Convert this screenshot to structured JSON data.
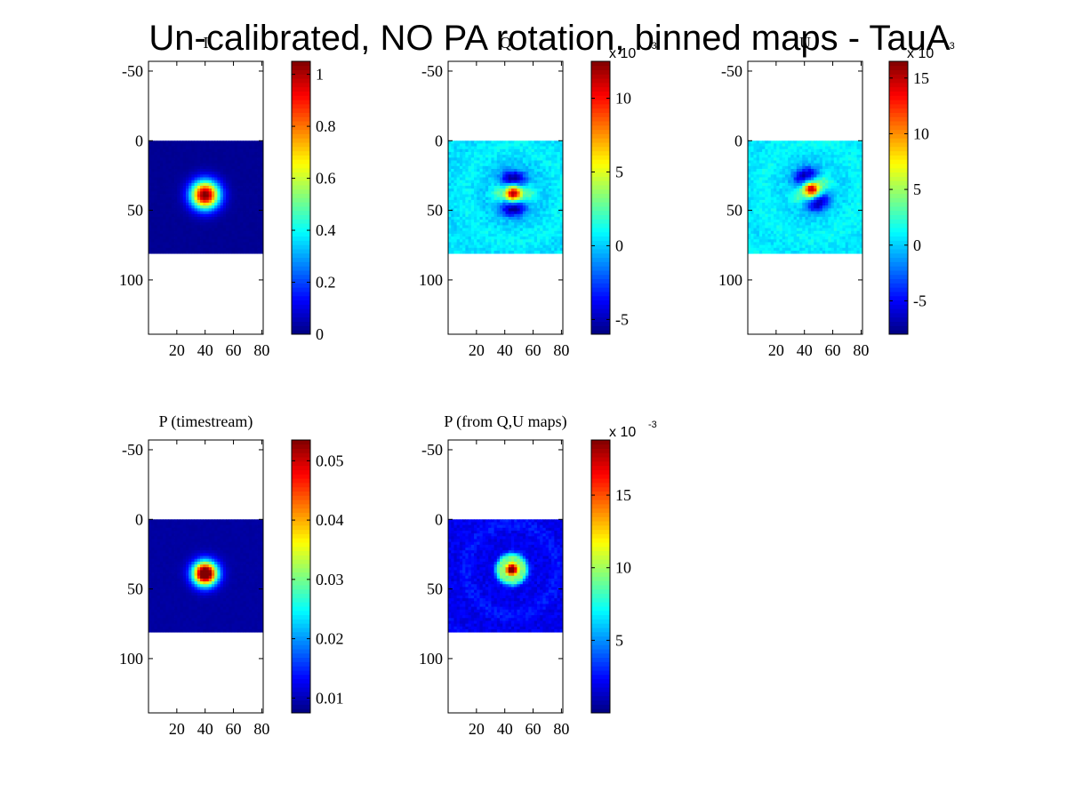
{
  "figure": {
    "title": "Un-calibrated, NO PA rotation, binned maps - TauA"
  },
  "chart_data": [
    {
      "type": "heatmap",
      "title": "I",
      "x_ticks": [
        20,
        40,
        60,
        80
      ],
      "y_ticks": [
        -50,
        0,
        50,
        100
      ],
      "xlim": [
        0,
        81
      ],
      "ylim": [
        -57,
        139
      ],
      "data_extent": {
        "x": [
          0,
          81
        ],
        "y": [
          0,
          81
        ]
      },
      "source": {
        "x": 40,
        "y": 39,
        "peak": 1.05,
        "sigma": 7
      },
      "background": 0.02,
      "pattern": "gaussian",
      "colorbar": {
        "min": 0,
        "max": 1.05,
        "ticks": [
          0,
          0.2,
          0.4,
          0.6,
          0.8,
          1
        ],
        "tick_labels": [
          "0",
          "0.2",
          "0.4",
          "0.6",
          "0.8",
          "1"
        ],
        "exponent": ""
      }
    },
    {
      "type": "heatmap",
      "title": "Q",
      "x_ticks": [
        20,
        40,
        60,
        80
      ],
      "y_ticks": [
        -50,
        0,
        50,
        100
      ],
      "xlim": [
        0,
        81
      ],
      "ylim": [
        -57,
        139
      ],
      "data_extent": {
        "x": [
          0,
          81
        ],
        "y": [
          0,
          81
        ]
      },
      "source": {
        "x": 46,
        "y": 38,
        "peak": 0.0115,
        "sigma": 3.5
      },
      "background": 0.0005,
      "pattern": "quadrupole",
      "colorbar": {
        "min": -0.006,
        "max": 0.0125,
        "ticks": [
          -0.005,
          0,
          0.005,
          0.01
        ],
        "tick_labels": [
          "-5",
          "0",
          "5",
          "10"
        ],
        "exponent": "x 10",
        "exponent_power": "-3"
      }
    },
    {
      "type": "heatmap",
      "title": "U",
      "x_ticks": [
        20,
        40,
        60,
        80
      ],
      "y_ticks": [
        -50,
        0,
        50,
        100
      ],
      "xlim": [
        0,
        81
      ],
      "ylim": [
        -57,
        139
      ],
      "data_extent": {
        "x": [
          0,
          81
        ],
        "y": [
          0,
          81
        ]
      },
      "source": {
        "x": 45,
        "y": 35,
        "peak": 0.0145,
        "sigma": 3.5
      },
      "background": 0.0008,
      "pattern": "quadrupole-rot",
      "colorbar": {
        "min": -0.008,
        "max": 0.0165,
        "ticks": [
          -0.005,
          0,
          0.005,
          0.01,
          0.015
        ],
        "tick_labels": [
          "-5",
          "0",
          "5",
          "10",
          "15"
        ],
        "exponent": "x 10",
        "exponent_power": "-3"
      }
    },
    {
      "type": "heatmap",
      "title": "P (timestream)",
      "x_ticks": [
        20,
        40,
        60,
        80
      ],
      "y_ticks": [
        -50,
        0,
        50,
        100
      ],
      "xlim": [
        0,
        81
      ],
      "ylim": [
        -57,
        139
      ],
      "data_extent": {
        "x": [
          0,
          81
        ],
        "y": [
          0,
          81
        ]
      },
      "source": {
        "x": 40,
        "y": 39,
        "peak": 0.053,
        "sigma": 6
      },
      "background": 0.009,
      "pattern": "gaussian",
      "colorbar": {
        "min": 0.0075,
        "max": 0.0535,
        "ticks": [
          0.01,
          0.02,
          0.03,
          0.04,
          0.05
        ],
        "tick_labels": [
          "0.01",
          "0.02",
          "0.03",
          "0.04",
          "0.05"
        ],
        "exponent": ""
      }
    },
    {
      "type": "heatmap",
      "title": "P (from Q,U maps)",
      "x_ticks": [
        20,
        40,
        60,
        80
      ],
      "y_ticks": [
        -50,
        0,
        50,
        100
      ],
      "xlim": [
        0,
        81
      ],
      "ylim": [
        -57,
        139
      ],
      "data_extent": {
        "x": [
          0,
          81
        ],
        "y": [
          0,
          81
        ]
      },
      "source": {
        "x": 45,
        "y": 36,
        "peak": 0.0185,
        "sigma": 3.5
      },
      "background": 0.002,
      "pattern": "rings",
      "colorbar": {
        "min": 0,
        "max": 0.0188,
        "ticks": [
          0.005,
          0.01,
          0.015
        ],
        "tick_labels": [
          "5",
          "10",
          "15"
        ],
        "exponent": "x 10",
        "exponent_power": "-3"
      }
    }
  ]
}
